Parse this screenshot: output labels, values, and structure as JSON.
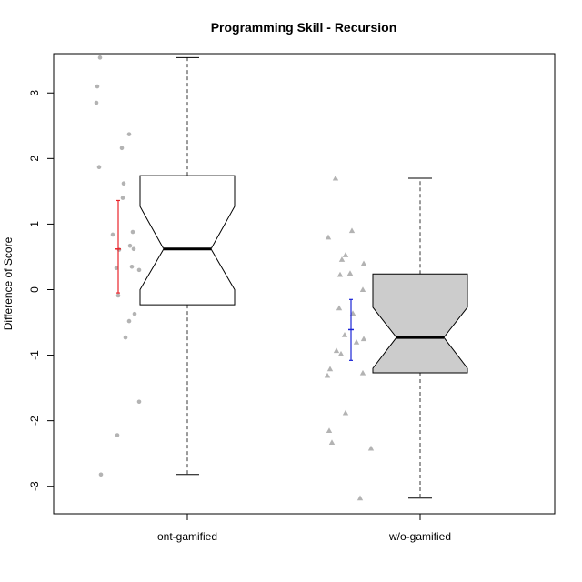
{
  "chart_data": {
    "type": "boxplot",
    "title": "Programming Skill - Recursion",
    "xlabel": "",
    "ylabel": "Difference of Score",
    "ylim": [
      -3.42,
      3.6
    ],
    "y_ticks": [
      -3,
      -2,
      -1,
      0,
      1,
      2,
      3
    ],
    "grid": false,
    "notched": true,
    "groups": [
      {
        "name": "ont-gamified",
        "box_fill": "#ffffff",
        "whisker_low": -2.82,
        "q1": -0.23,
        "median": 0.62,
        "q3": 1.74,
        "whisker_high": 3.54,
        "notch_low": 0.0,
        "notch_high": 1.27,
        "mean": 0.62,
        "ci_low": -0.05,
        "ci_high": 1.36,
        "mean_color": "#e8232a",
        "point_shape": "circle",
        "points": [
          3.54,
          3.1,
          2.85,
          2.37,
          2.16,
          1.87,
          1.62,
          1.4,
          0.88,
          0.84,
          0.67,
          0.62,
          0.61,
          0.35,
          0.33,
          0.3,
          -0.09,
          -0.37,
          -0.48,
          -0.73,
          -1.71,
          -2.22,
          -2.82
        ]
      },
      {
        "name": "w/o-gamified",
        "box_fill": "#cccccc",
        "whisker_low": -3.18,
        "q1": -1.27,
        "median": -0.73,
        "q3": 0.24,
        "whisker_high": 1.7,
        "notch_low": -1.2,
        "notch_high": -0.27,
        "mean": -0.61,
        "ci_low": -1.08,
        "ci_high": -0.15,
        "mean_color": "#1b24d6",
        "point_shape": "triangle",
        "points": [
          1.7,
          0.9,
          0.8,
          0.53,
          0.46,
          0.4,
          0.25,
          0.23,
          0.0,
          -0.28,
          -0.36,
          -0.69,
          -0.75,
          -0.8,
          -0.93,
          -0.98,
          -1.21,
          -1.27,
          -1.31,
          -1.88,
          -2.15,
          -2.33,
          -2.42,
          -3.18
        ]
      }
    ],
    "point_color": "#b3b3b3",
    "whisker_color": "#7a7a7a"
  }
}
